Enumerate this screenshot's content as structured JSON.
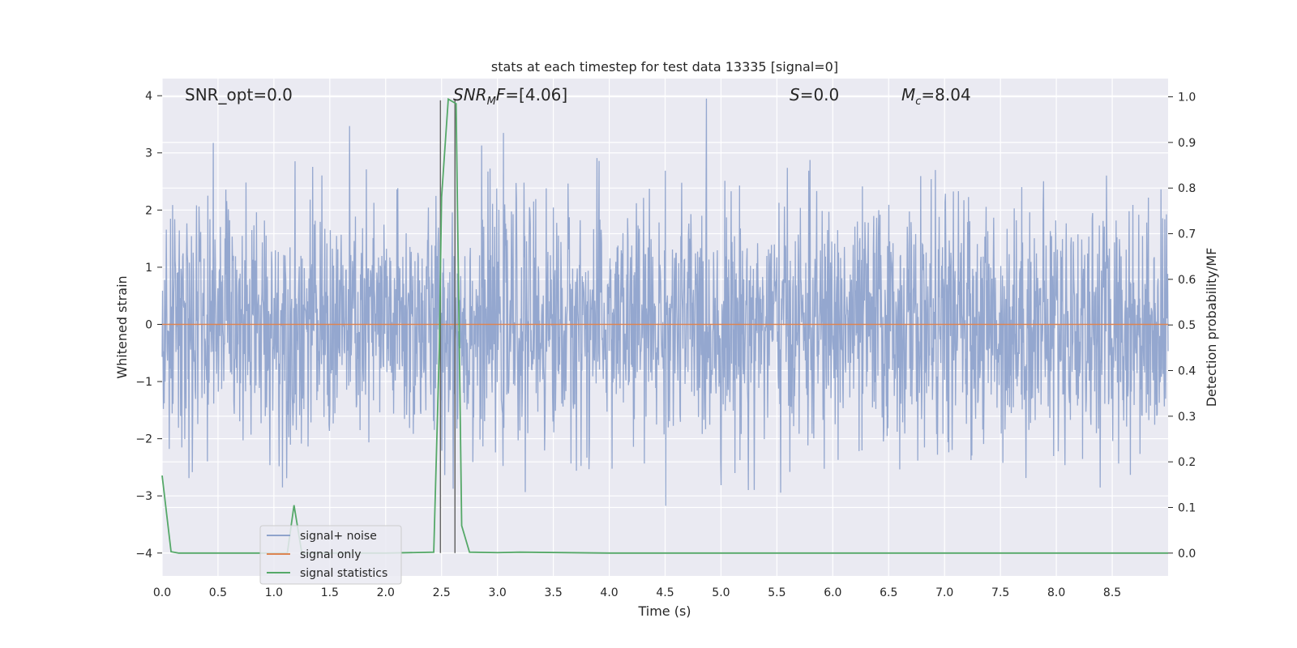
{
  "chart_data": {
    "type": "line",
    "title": "stats at each timestep for test data 13335 [signal=0]",
    "xlabel": "Time (s)",
    "ylabel": "Whitened strain",
    "y2label": "Detection probability/MF",
    "xlim": [
      0,
      9.0
    ],
    "ylim": [
      -4.4,
      4.3
    ],
    "y2lim": [
      -0.05,
      1.04
    ],
    "grid": true,
    "legend_position": "lower-left",
    "xticks": [
      "0.0",
      "0.5",
      "1.0",
      "1.5",
      "2.0",
      "2.5",
      "3.0",
      "3.5",
      "4.0",
      "4.5",
      "5.0",
      "5.5",
      "6.0",
      "6.5",
      "7.0",
      "7.5",
      "8.0",
      "8.5"
    ],
    "xtick_values": [
      0,
      0.5,
      1,
      1.5,
      2,
      2.5,
      3,
      3.5,
      4,
      4.5,
      5,
      5.5,
      6,
      6.5,
      7,
      7.5,
      8,
      8.5
    ],
    "yticks": [
      "−4",
      "−3",
      "−2",
      "−1",
      "0",
      "1",
      "2",
      "3",
      "4"
    ],
    "ytick_values": [
      -4,
      -3,
      -2,
      -1,
      0,
      1,
      2,
      3,
      4
    ],
    "y2ticks": [
      "0.0",
      "0.1",
      "0.2",
      "0.3",
      "0.4",
      "0.5",
      "0.6",
      "0.7",
      "0.8",
      "0.9",
      "1.0"
    ],
    "y2tick_values": [
      0,
      0.1,
      0.2,
      0.3,
      0.4,
      0.5,
      0.6,
      0.7,
      0.8,
      0.9,
      1.0
    ],
    "annotations": [
      {
        "text": "SNR_opt=0.0",
        "x": 0.2,
        "y": 4.0
      },
      {
        "text": "SNR_MF=[4.06]",
        "x": 2.6,
        "y": 4.0
      },
      {
        "text": "S=0.0",
        "x": 5.6,
        "y": 4.0
      },
      {
        "text": "M_c=8.04",
        "x": 6.6,
        "y": 4.0
      }
    ],
    "series": [
      {
        "name": "signal+ noise",
        "color": "#8fa3cc",
        "axis": "left",
        "style": "noise",
        "t_start": 0,
        "t_end": 9.0,
        "typical_abs_max": 2.3,
        "extreme_max": 3.95,
        "extreme_min": -4.0
      },
      {
        "name": "signal only",
        "color": "#dd8452",
        "axis": "left",
        "x": [
          0,
          9.0
        ],
        "y": [
          0,
          0
        ]
      },
      {
        "name": "signal statistics",
        "color": "#55a868",
        "axis": "right",
        "x": [
          0,
          0.08,
          0.15,
          0.5,
          1.0,
          1.12,
          1.18,
          1.25,
          1.5,
          2.0,
          2.43,
          2.48,
          2.5,
          2.56,
          2.63,
          2.68,
          2.75,
          3.0,
          3.2,
          4.0,
          5.0,
          6.0,
          7.0,
          8.0,
          9.0
        ],
        "y": [
          0.17,
          0.003,
          0.0,
          0.0,
          0.0,
          0.0,
          0.105,
          0.0,
          0.0,
          0.0,
          0.002,
          0.45,
          0.78,
          0.995,
          0.985,
          0.06,
          0.002,
          0.001,
          0.002,
          0.0,
          0.0,
          0.0,
          0.0,
          0.0,
          0.0
        ]
      }
    ],
    "vlines": [
      {
        "x": 2.49,
        "y_from": -4.0,
        "y_to": 3.92,
        "color": "#666666"
      },
      {
        "x": 2.62,
        "y_from": -4.0,
        "y_to": 3.92,
        "color": "#666666"
      }
    ]
  }
}
